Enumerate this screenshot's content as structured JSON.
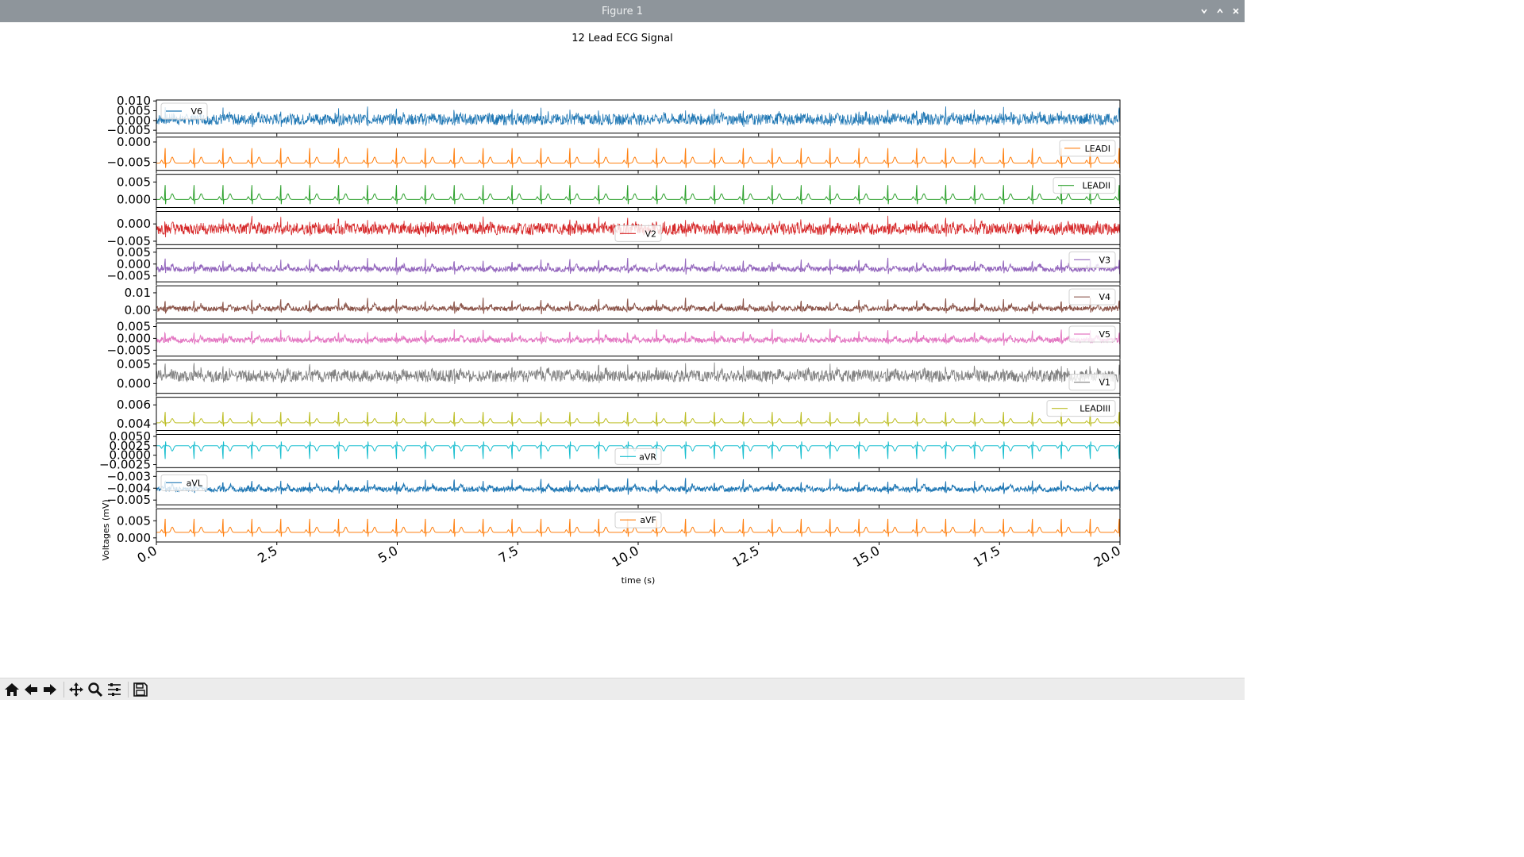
{
  "window": {
    "title": "Figure 1",
    "controls": [
      "chevron-down-icon",
      "chevron-up-icon",
      "close-icon"
    ]
  },
  "toolbar": {
    "buttons": [
      "home-icon",
      "back-arrow-icon",
      "forward-arrow-icon",
      "pan-icon",
      "zoom-icon",
      "configure-subplots-icon",
      "save-icon"
    ]
  },
  "chart_data": {
    "type": "line",
    "title": "12 Lead ECG Signal",
    "xlabel": "time (s)",
    "ylabel": "Voltages (mV)",
    "xlim": [
      0,
      20
    ],
    "x_ticks": [
      "0.0",
      "2.5",
      "5.0",
      "7.5",
      "10.0",
      "12.5",
      "15.0",
      "17.5",
      "20.0"
    ],
    "grid": false,
    "series": [
      {
        "name": "V6",
        "color": "#1f77b4",
        "ylim": [
          -0.0065,
          0.0105
        ],
        "yticks": [
          [
            0.01,
            "0.010"
          ],
          [
            0.005,
            "0.005"
          ],
          [
            0.0,
            "0.000"
          ],
          [
            -0.005,
            "−0.005"
          ]
        ],
        "baseline": 0.0005,
        "amplitude": 0.006,
        "style": "dense",
        "legend": "top-left"
      },
      {
        "name": "LEADI",
        "color": "#ff7f0e",
        "ylim": [
          -0.007,
          0.0012
        ],
        "yticks": [
          [
            0.0,
            "0.000"
          ],
          [
            -0.005,
            "−0.005"
          ]
        ],
        "baseline": -0.0052,
        "amplitude": 0.0058,
        "style": "ecg",
        "legend": "top-right"
      },
      {
        "name": "LEADII",
        "color": "#2ca02c",
        "ylim": [
          -0.0023,
          0.0072
        ],
        "yticks": [
          [
            0.005,
            "0.005"
          ],
          [
            0.0,
            "0.000"
          ]
        ],
        "baseline": 0.0,
        "amplitude": 0.0065,
        "style": "ecg",
        "legend": "top-right"
      },
      {
        "name": "V2",
        "color": "#d62728",
        "ylim": [
          -0.006,
          0.0036
        ],
        "yticks": [
          [
            0.0,
            "0.000"
          ],
          [
            -0.005,
            "−0.005"
          ]
        ],
        "baseline": -0.0015,
        "amplitude": 0.0035,
        "style": "dense",
        "legend": "lower-center"
      },
      {
        "name": "V3",
        "color": "#9467bd",
        "ylim": [
          -0.0075,
          0.0065
        ],
        "yticks": [
          [
            0.005,
            "0.005"
          ],
          [
            0.0,
            "0.000"
          ],
          [
            -0.005,
            "−0.005"
          ]
        ],
        "baseline": -0.0022,
        "amplitude": 0.0062,
        "style": "mixed",
        "legend": "top-right"
      },
      {
        "name": "V4",
        "color": "#8c564b",
        "ylim": [
          -0.005,
          0.014
        ],
        "yticks": [
          [
            0.01,
            "0.01"
          ],
          [
            0.0,
            "0.00"
          ]
        ],
        "baseline": 0.0008,
        "amplitude": 0.008,
        "style": "mixed",
        "legend": "top-right"
      },
      {
        "name": "V5",
        "color": "#e377c2",
        "ylim": [
          -0.0075,
          0.0065
        ],
        "yticks": [
          [
            0.005,
            "0.005"
          ],
          [
            0.0,
            "0.000"
          ],
          [
            -0.005,
            "−0.005"
          ]
        ],
        "baseline": -0.0008,
        "amplitude": 0.006,
        "style": "mixed",
        "legend": "top-right"
      },
      {
        "name": "V1",
        "color": "#7f7f7f",
        "ylim": [
          -0.0025,
          0.006
        ],
        "yticks": [
          [
            0.005,
            "0.005"
          ],
          [
            0.0,
            "0.000"
          ]
        ],
        "baseline": 0.0019,
        "amplitude": 0.0032,
        "style": "dense",
        "legend": "lower-right"
      },
      {
        "name": "LEADIII",
        "color": "#bcbd22",
        "ylim": [
          0.0033,
          0.0068
        ],
        "yticks": [
          [
            0.006,
            "0.006"
          ],
          [
            0.004,
            "0.004"
          ]
        ],
        "baseline": 0.0041,
        "amplitude": 0.0018,
        "style": "ecg",
        "legend": "top-right"
      },
      {
        "name": "aVR",
        "color": "#17becf",
        "ylim": [
          -0.0033,
          0.0055
        ],
        "yticks": [
          [
            0.005,
            "0.0050"
          ],
          [
            0.0025,
            "0.0025"
          ],
          [
            0.0,
            "0.0000"
          ],
          [
            -0.0025,
            "−0.0025"
          ]
        ],
        "baseline": 0.0025,
        "amplitude": -0.0055,
        "style": "ecg",
        "legend": "lower-center"
      },
      {
        "name": "aVL",
        "color": "#1f77b4",
        "ylim": [
          -0.0054,
          -0.0026
        ],
        "yticks": [
          [
            -0.003,
            "−0.003"
          ],
          [
            -0.004,
            "−0.004"
          ],
          [
            -0.005,
            "−0.005"
          ]
        ],
        "baseline": -0.0041,
        "amplitude": 0.0012,
        "style": "mixed",
        "legend": "top-left"
      },
      {
        "name": "aVF",
        "color": "#ff7f0e",
        "ylim": [
          -0.0012,
          0.0085
        ],
        "yticks": [
          [
            0.005,
            "0.005"
          ],
          [
            0.0,
            "0.000"
          ]
        ],
        "baseline": 0.0016,
        "amplitude": 0.0062,
        "style": "ecg",
        "legend": "upper-center"
      }
    ]
  }
}
